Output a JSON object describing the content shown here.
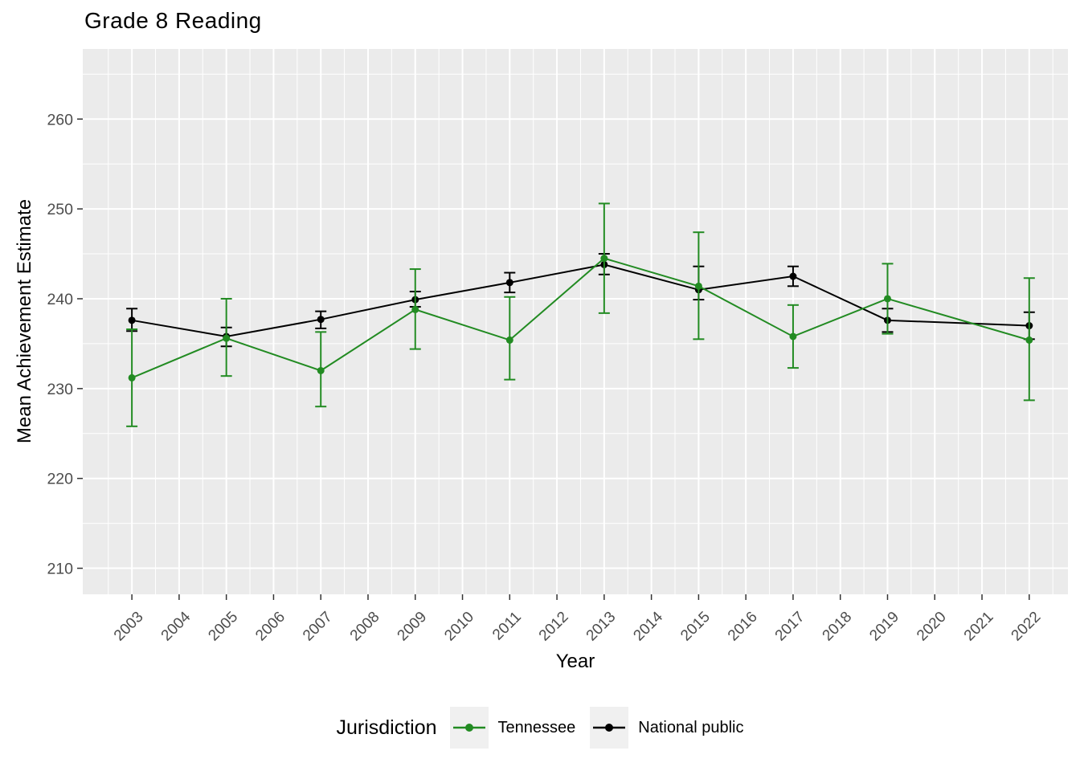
{
  "chart_data": {
    "type": "line",
    "title": "Grade 8 Reading",
    "xlabel": "Year",
    "ylabel": "Mean Achievement Estimate",
    "legend_title": "Jurisdiction",
    "legend_position": "bottom",
    "xlim": [
      2001.96,
      2022.82
    ],
    "ylim": [
      207.1,
      267.8
    ],
    "x_ticks": [
      2003,
      2004,
      2005,
      2006,
      2007,
      2008,
      2009,
      2010,
      2011,
      2012,
      2013,
      2014,
      2015,
      2016,
      2017,
      2018,
      2019,
      2020,
      2021,
      2022
    ],
    "y_ticks": [
      210,
      220,
      230,
      240,
      250,
      260
    ],
    "grid": {
      "major": true,
      "minor": true
    },
    "error_bars": true,
    "colors": {
      "panel_bg": "#EBEBEB",
      "grid": "#FFFFFF",
      "axis_text": "#4D4D4D",
      "tick_marks": "#333333",
      "legend_key_bg": "#F0F0F0",
      "title": "#000000"
    },
    "series": [
      {
        "name": "Tennessee",
        "color": "#228B22",
        "x": [
          2003,
          2005,
          2007,
          2009,
          2011,
          2013,
          2015,
          2017,
          2019,
          2022
        ],
        "y": [
          231.2,
          235.6,
          232.0,
          238.8,
          235.4,
          244.5,
          241.4,
          235.8,
          240.0,
          235.4
        ],
        "ci_low": [
          225.8,
          231.4,
          228.0,
          234.4,
          231.0,
          238.4,
          235.5,
          232.3,
          236.1,
          228.7
        ],
        "ci_high": [
          236.6,
          240.0,
          236.3,
          243.3,
          240.2,
          250.6,
          247.4,
          239.3,
          243.9,
          242.3
        ]
      },
      {
        "name": "National public",
        "color": "#000000",
        "x": [
          2003,
          2005,
          2007,
          2009,
          2011,
          2013,
          2015,
          2017,
          2019,
          2022
        ],
        "y": [
          237.6,
          235.8,
          237.7,
          239.9,
          241.8,
          243.8,
          241.0,
          242.5,
          237.6,
          237.0
        ],
        "ci_low": [
          236.4,
          234.7,
          236.7,
          239.1,
          240.7,
          242.7,
          239.9,
          241.4,
          236.3,
          235.5
        ],
        "ci_high": [
          238.9,
          236.8,
          238.6,
          240.8,
          242.9,
          245.0,
          243.6,
          243.6,
          238.9,
          238.5
        ]
      }
    ]
  }
}
